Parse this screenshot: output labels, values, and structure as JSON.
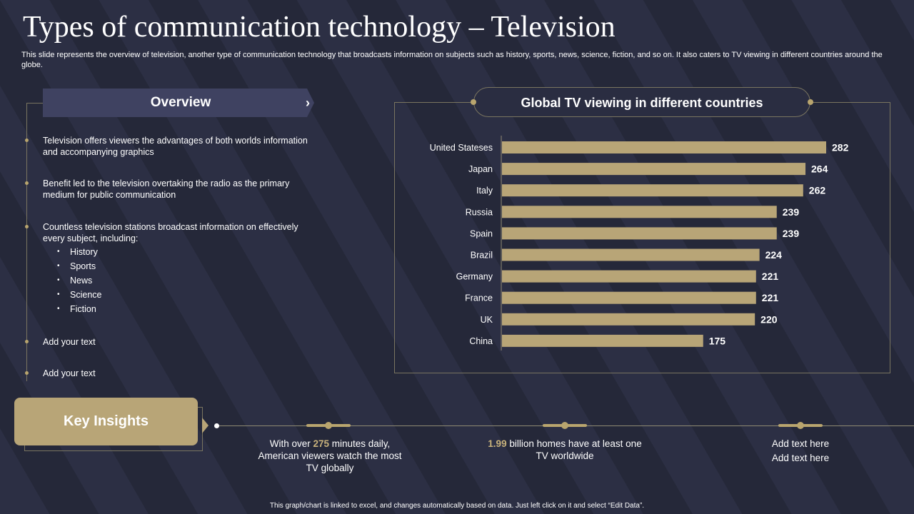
{
  "header": {
    "title": "Types of communication technology – Television",
    "subtitle": "This slide represents the overview of television, another type of communication technology that broadcasts information on subjects such as history, sports, news, science, fiction, and so on. It also caters to TV viewing in different countries around the globe."
  },
  "overview": {
    "heading": "Overview",
    "chevron": "›",
    "points": [
      "Television offers viewers the advantages of both worlds information and accompanying graphics",
      "Benefit led to the television overtaking the radio as the primary medium for public communication",
      "Countless television stations broadcast information on effectively every subject, including:"
    ],
    "subjects": [
      "History",
      "Sports",
      "News",
      "Science",
      "Fiction"
    ],
    "extra": [
      "Add your text",
      "Add your text"
    ]
  },
  "chart_title": "Global TV viewing in different countries",
  "chart_data": {
    "type": "bar",
    "orientation": "horizontal",
    "title": "Global TV viewing in different countries",
    "categories": [
      "United Stateses",
      "Japan",
      "Italy",
      "Russia",
      "Spain",
      "Brazil",
      "Germany",
      "France",
      "UK",
      "China"
    ],
    "values": [
      282,
      264,
      262,
      239,
      239,
      224,
      221,
      221,
      220,
      175
    ],
    "xlim": [
      0,
      282
    ],
    "bar_color": "#b8a577",
    "grid": false,
    "legend": "none"
  },
  "key_insights": {
    "label": "Key Insights",
    "items": [
      {
        "pre": "With over ",
        "highlight": "275",
        "post": " minutes daily, American viewers watch the most TV globally"
      },
      {
        "pre": "",
        "highlight": "1.99",
        "post": " billion homes have at least one TV worldwide"
      },
      {
        "lines": [
          "Add text here",
          "Add text here"
        ]
      }
    ]
  },
  "footer": "This graph/chart is linked to excel, and changes automatically based on data. Just left click on it and select “Edit Data”.",
  "colors": {
    "background": "#272a3d",
    "accent_gold": "#b8a577",
    "overview_header": "#3f4261",
    "highlight": "#c8b27c"
  }
}
